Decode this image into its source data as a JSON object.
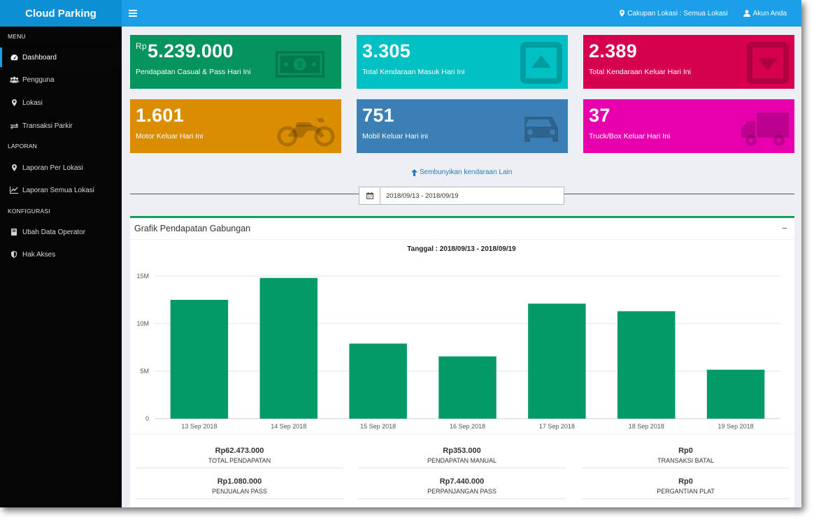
{
  "app": {
    "title": "Cloud Parking"
  },
  "header": {
    "location_label": "Cakupan Lokasi : Semua Lokasi",
    "account_label": "Akun Anda"
  },
  "sidebar": {
    "menu_header": "MENU",
    "laporan_header": "LAPORAN",
    "konfigurasi_header": "KONFIGURASI",
    "items": [
      {
        "label": "Dashboard",
        "icon": "dashboard-icon",
        "active": true
      },
      {
        "label": "Pengguna",
        "icon": "users-icon"
      },
      {
        "label": "Lokasi",
        "icon": "map-marker-icon"
      },
      {
        "label": "Transaksi Parkir",
        "icon": "exchange-icon"
      },
      {
        "label": "Laporan Per Lokasi",
        "icon": "map-marker-icon"
      },
      {
        "label": "Laporan Semua Lokasi",
        "icon": "line-chart-icon"
      },
      {
        "label": "Ubah Data Operator",
        "icon": "book-icon"
      },
      {
        "label": "Hak Akses",
        "icon": "shield-icon"
      }
    ]
  },
  "boxes": [
    {
      "prefix": "Rp",
      "value": "5.239.000",
      "label": "Pendapatan Casual & Pass Hari Ini",
      "color": "#05935e",
      "icon": "money-icon"
    },
    {
      "prefix": "",
      "value": "3.305",
      "label": "Total Kendaraan Masuk Hari Ini",
      "color": "#00c0c4",
      "icon": "arrow-up-square-icon"
    },
    {
      "prefix": "",
      "value": "2.389",
      "label": "Total Kendaraan Keluar Hari Ini",
      "color": "#d6004f",
      "icon": "arrow-down-square-icon"
    },
    {
      "prefix": "",
      "value": "1.601",
      "label": "Motor Keluar Hari Ini",
      "color": "#db8d00",
      "icon": "motorcycle-icon"
    },
    {
      "prefix": "",
      "value": "751",
      "label": "Mobil Keluar Hari ini",
      "color": "#3c7fb5",
      "icon": "car-icon"
    },
    {
      "prefix": "",
      "value": "37",
      "label": "Truck/Box Keluar Hari Ini",
      "color": "#e800ae",
      "icon": "truck-icon"
    }
  ],
  "toggle_link": "Sembunyikan kendaraan Lain",
  "date_range": {
    "value": "2018/09/13 - 2018/09/19"
  },
  "panel": {
    "title": "Grafik Pendapatan Gabungan",
    "collapse_symbol": "−"
  },
  "chart_data": {
    "type": "bar",
    "title": "Tanggal : 2018/09/13 - 2018/09/19",
    "categories": [
      "13 Sep 2018",
      "14 Sep 2018",
      "15 Sep 2018",
      "16 Sep 2018",
      "17 Sep 2018",
      "18 Sep 2018",
      "19 Sep 2018"
    ],
    "values": [
      12500000,
      14800000,
      7900000,
      6550000,
      12100000,
      11300000,
      5150000
    ],
    "ylim": [
      0,
      15000000
    ],
    "yticks": [
      {
        "value": 0,
        "label": "0"
      },
      {
        "value": 5000000,
        "label": "5M"
      },
      {
        "value": 10000000,
        "label": "10M"
      },
      {
        "value": 15000000,
        "label": "15M"
      }
    ],
    "grid": true,
    "bar_color": "#049a67"
  },
  "summary": [
    {
      "value": "Rp62.473.000",
      "label": "TOTAL PENDAPATAN"
    },
    {
      "value": "Rp353.000",
      "label": "PENDAPATAN MANUAL"
    },
    {
      "value": "Rp0",
      "label": "TRANSAKSI BATAL"
    },
    {
      "value": "Rp1.080.000",
      "label": "PENJUALAN PASS"
    },
    {
      "value": "Rp7.440.000",
      "label": "PERPANJANGAN PASS"
    },
    {
      "value": "Rp0",
      "label": "PERGANTIAN PLAT"
    }
  ]
}
